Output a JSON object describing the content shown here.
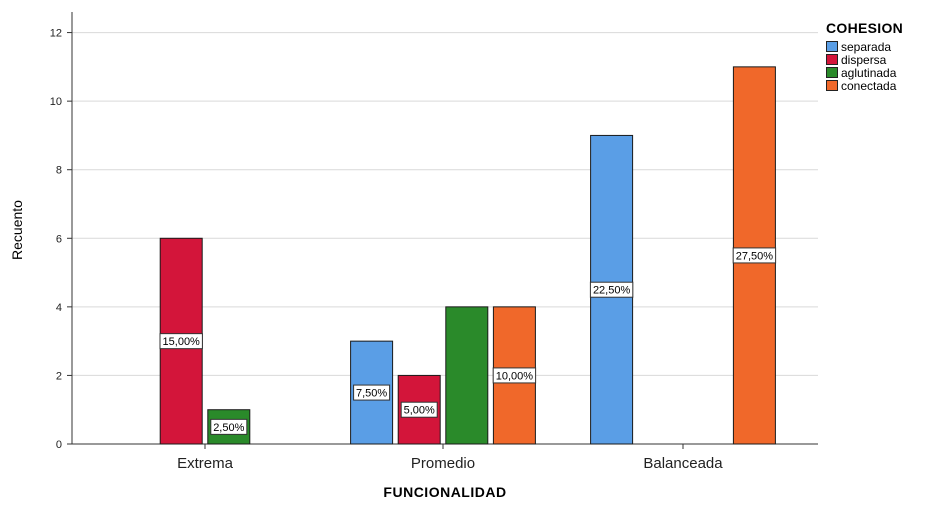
{
  "chart_data": {
    "type": "bar",
    "xlabel": "FUNCIONALIDAD",
    "ylabel": "Recuento",
    "categories": [
      "Extrema",
      "Promedio",
      "Balanceada"
    ],
    "ylim": [
      0,
      12.6
    ],
    "yticks": [
      "0",
      "2",
      "4",
      "6",
      "8",
      "10",
      "12"
    ],
    "grid": true,
    "legend": {
      "title": "COHESION",
      "position": "top-right"
    },
    "series": [
      {
        "name": "separada",
        "color": "#5a9ee6",
        "values": [
          0,
          3,
          9
        ],
        "labels": [
          "",
          "7,50%",
          "22,50%"
        ]
      },
      {
        "name": "dispersa",
        "color": "#d3153a",
        "values": [
          6,
          2,
          0
        ],
        "labels": [
          "15,00%",
          "5,00%",
          ""
        ]
      },
      {
        "name": "aglutinada",
        "color": "#2a8a2a",
        "values": [
          1,
          4,
          0
        ],
        "labels": [
          "2,50%",
          "",
          ""
        ]
      },
      {
        "name": "conectada",
        "color": "#f0682a",
        "values": [
          0,
          4,
          11
        ],
        "labels": [
          "",
          "10,00%",
          "27,50%"
        ]
      }
    ]
  }
}
